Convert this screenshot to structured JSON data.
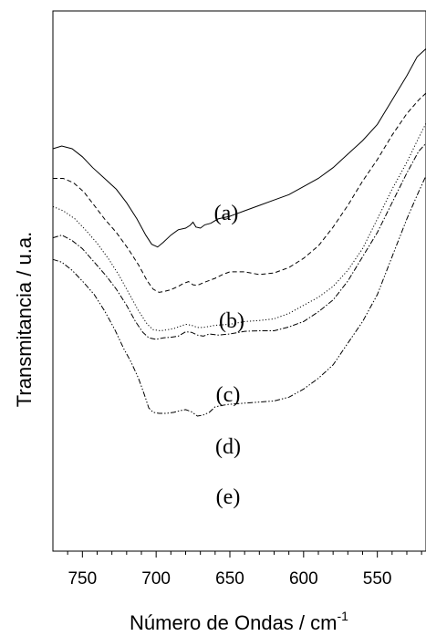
{
  "chart_data": {
    "type": "line",
    "title": "",
    "xlabel": "Número de Ondas / cm",
    "xlabel_superscript": "-1",
    "ylabel": "Transmitancia / u.a.",
    "xlim": [
      770,
      517
    ],
    "x_reversed": true,
    "xticks": [
      750,
      700,
      650,
      600,
      550
    ],
    "y_ticks_shown": false,
    "grid": false,
    "legend": "none",
    "line_color": "#000000",
    "series": [
      {
        "label": "(a)",
        "dash": "solid",
        "points": [
          [
            770,
            0.745
          ],
          [
            764,
            0.75
          ],
          [
            757,
            0.745
          ],
          [
            750,
            0.73
          ],
          [
            743,
            0.71
          ],
          [
            735,
            0.69
          ],
          [
            727,
            0.67
          ],
          [
            720,
            0.645
          ],
          [
            713,
            0.615
          ],
          [
            707,
            0.585
          ],
          [
            703,
            0.568
          ],
          [
            699,
            0.563
          ],
          [
            695,
            0.572
          ],
          [
            690,
            0.585
          ],
          [
            685,
            0.595
          ],
          [
            680,
            0.598
          ],
          [
            677,
            0.603
          ],
          [
            675,
            0.609
          ],
          [
            673,
            0.6
          ],
          [
            670,
            0.598
          ],
          [
            667,
            0.604
          ],
          [
            663,
            0.607
          ],
          [
            658,
            0.615
          ],
          [
            650,
            0.62
          ],
          [
            640,
            0.63
          ],
          [
            630,
            0.64
          ],
          [
            620,
            0.65
          ],
          [
            610,
            0.66
          ],
          [
            600,
            0.675
          ],
          [
            590,
            0.69
          ],
          [
            580,
            0.71
          ],
          [
            570,
            0.735
          ],
          [
            560,
            0.76
          ],
          [
            550,
            0.79
          ],
          [
            540,
            0.835
          ],
          [
            530,
            0.88
          ],
          [
            523,
            0.915
          ],
          [
            517,
            0.93
          ]
        ]
      },
      {
        "label": "(b)",
        "dash": "dashed",
        "points": [
          [
            770,
            0.69
          ],
          [
            763,
            0.69
          ],
          [
            756,
            0.682
          ],
          [
            749,
            0.665
          ],
          [
            742,
            0.64
          ],
          [
            735,
            0.615
          ],
          [
            727,
            0.59
          ],
          [
            719,
            0.56
          ],
          [
            712,
            0.53
          ],
          [
            706,
            0.5
          ],
          [
            702,
            0.485
          ],
          [
            698,
            0.479
          ],
          [
            694,
            0.481
          ],
          [
            690,
            0.484
          ],
          [
            685,
            0.49
          ],
          [
            682,
            0.495
          ],
          [
            678,
            0.499
          ],
          [
            675,
            0.493
          ],
          [
            672,
            0.492
          ],
          [
            668,
            0.497
          ],
          [
            660,
            0.505
          ],
          [
            655,
            0.512
          ],
          [
            650,
            0.517
          ],
          [
            640,
            0.517
          ],
          [
            630,
            0.512
          ],
          [
            620,
            0.515
          ],
          [
            610,
            0.525
          ],
          [
            600,
            0.542
          ],
          [
            590,
            0.565
          ],
          [
            580,
            0.6
          ],
          [
            570,
            0.64
          ],
          [
            560,
            0.685
          ],
          [
            550,
            0.725
          ],
          [
            540,
            0.77
          ],
          [
            530,
            0.81
          ],
          [
            522,
            0.835
          ],
          [
            517,
            0.848
          ]
        ]
      },
      {
        "label": "(c)",
        "dash": "dotted",
        "points": [
          [
            770,
            0.638
          ],
          [
            763,
            0.63
          ],
          [
            755,
            0.615
          ],
          [
            748,
            0.595
          ],
          [
            740,
            0.57
          ],
          [
            732,
            0.54
          ],
          [
            725,
            0.51
          ],
          [
            718,
            0.475
          ],
          [
            712,
            0.445
          ],
          [
            706,
            0.42
          ],
          [
            702,
            0.41
          ],
          [
            697,
            0.408
          ],
          [
            692,
            0.41
          ],
          [
            688,
            0.412
          ],
          [
            684,
            0.416
          ],
          [
            680,
            0.42
          ],
          [
            676,
            0.418
          ],
          [
            672,
            0.414
          ],
          [
            668,
            0.414
          ],
          [
            660,
            0.418
          ],
          [
            650,
            0.42
          ],
          [
            640,
            0.425
          ],
          [
            630,
            0.427
          ],
          [
            620,
            0.43
          ],
          [
            610,
            0.44
          ],
          [
            600,
            0.455
          ],
          [
            590,
            0.47
          ],
          [
            580,
            0.49
          ],
          [
            570,
            0.52
          ],
          [
            560,
            0.56
          ],
          [
            550,
            0.615
          ],
          [
            540,
            0.67
          ],
          [
            530,
            0.72
          ],
          [
            522,
            0.765
          ],
          [
            517,
            0.792
          ]
        ]
      },
      {
        "label": "(d)",
        "dash": "dashdot",
        "points": [
          [
            770,
            0.58
          ],
          [
            764,
            0.585
          ],
          [
            757,
            0.575
          ],
          [
            750,
            0.56
          ],
          [
            742,
            0.535
          ],
          [
            734,
            0.51
          ],
          [
            727,
            0.485
          ],
          [
            720,
            0.455
          ],
          [
            714,
            0.425
          ],
          [
            709,
            0.405
          ],
          [
            705,
            0.395
          ],
          [
            700,
            0.392
          ],
          [
            695,
            0.395
          ],
          [
            690,
            0.396
          ],
          [
            685,
            0.398
          ],
          [
            680,
            0.406
          ],
          [
            676,
            0.405
          ],
          [
            672,
            0.4
          ],
          [
            668,
            0.398
          ],
          [
            664,
            0.402
          ],
          [
            658,
            0.4
          ],
          [
            650,
            0.402
          ],
          [
            640,
            0.407
          ],
          [
            630,
            0.408
          ],
          [
            620,
            0.408
          ],
          [
            610,
            0.415
          ],
          [
            600,
            0.425
          ],
          [
            590,
            0.443
          ],
          [
            580,
            0.465
          ],
          [
            570,
            0.5
          ],
          [
            560,
            0.545
          ],
          [
            550,
            0.59
          ],
          [
            540,
            0.645
          ],
          [
            530,
            0.7
          ],
          [
            522,
            0.74
          ],
          [
            517,
            0.755
          ]
        ]
      },
      {
        "label": "(e)",
        "dash": "dashdotdot",
        "points": [
          [
            770,
            0.54
          ],
          [
            764,
            0.535
          ],
          [
            757,
            0.52
          ],
          [
            750,
            0.5
          ],
          [
            742,
            0.475
          ],
          [
            735,
            0.445
          ],
          [
            728,
            0.41
          ],
          [
            722,
            0.375
          ],
          [
            717,
            0.35
          ],
          [
            712,
            0.32
          ],
          [
            708,
            0.29
          ],
          [
            705,
            0.265
          ],
          [
            702,
            0.257
          ],
          [
            698,
            0.255
          ],
          [
            693,
            0.255
          ],
          [
            688,
            0.257
          ],
          [
            684,
            0.26
          ],
          [
            680,
            0.262
          ],
          [
            676,
            0.258
          ],
          [
            672,
            0.25
          ],
          [
            668,
            0.252
          ],
          [
            664,
            0.257
          ],
          [
            660,
            0.267
          ],
          [
            655,
            0.27
          ],
          [
            650,
            0.272
          ],
          [
            640,
            0.274
          ],
          [
            630,
            0.276
          ],
          [
            620,
            0.278
          ],
          [
            610,
            0.285
          ],
          [
            600,
            0.3
          ],
          [
            590,
            0.32
          ],
          [
            580,
            0.345
          ],
          [
            570,
            0.385
          ],
          [
            560,
            0.425
          ],
          [
            550,
            0.475
          ],
          [
            540,
            0.545
          ],
          [
            530,
            0.615
          ],
          [
            522,
            0.665
          ],
          [
            517,
            0.695
          ]
        ]
      }
    ]
  }
}
